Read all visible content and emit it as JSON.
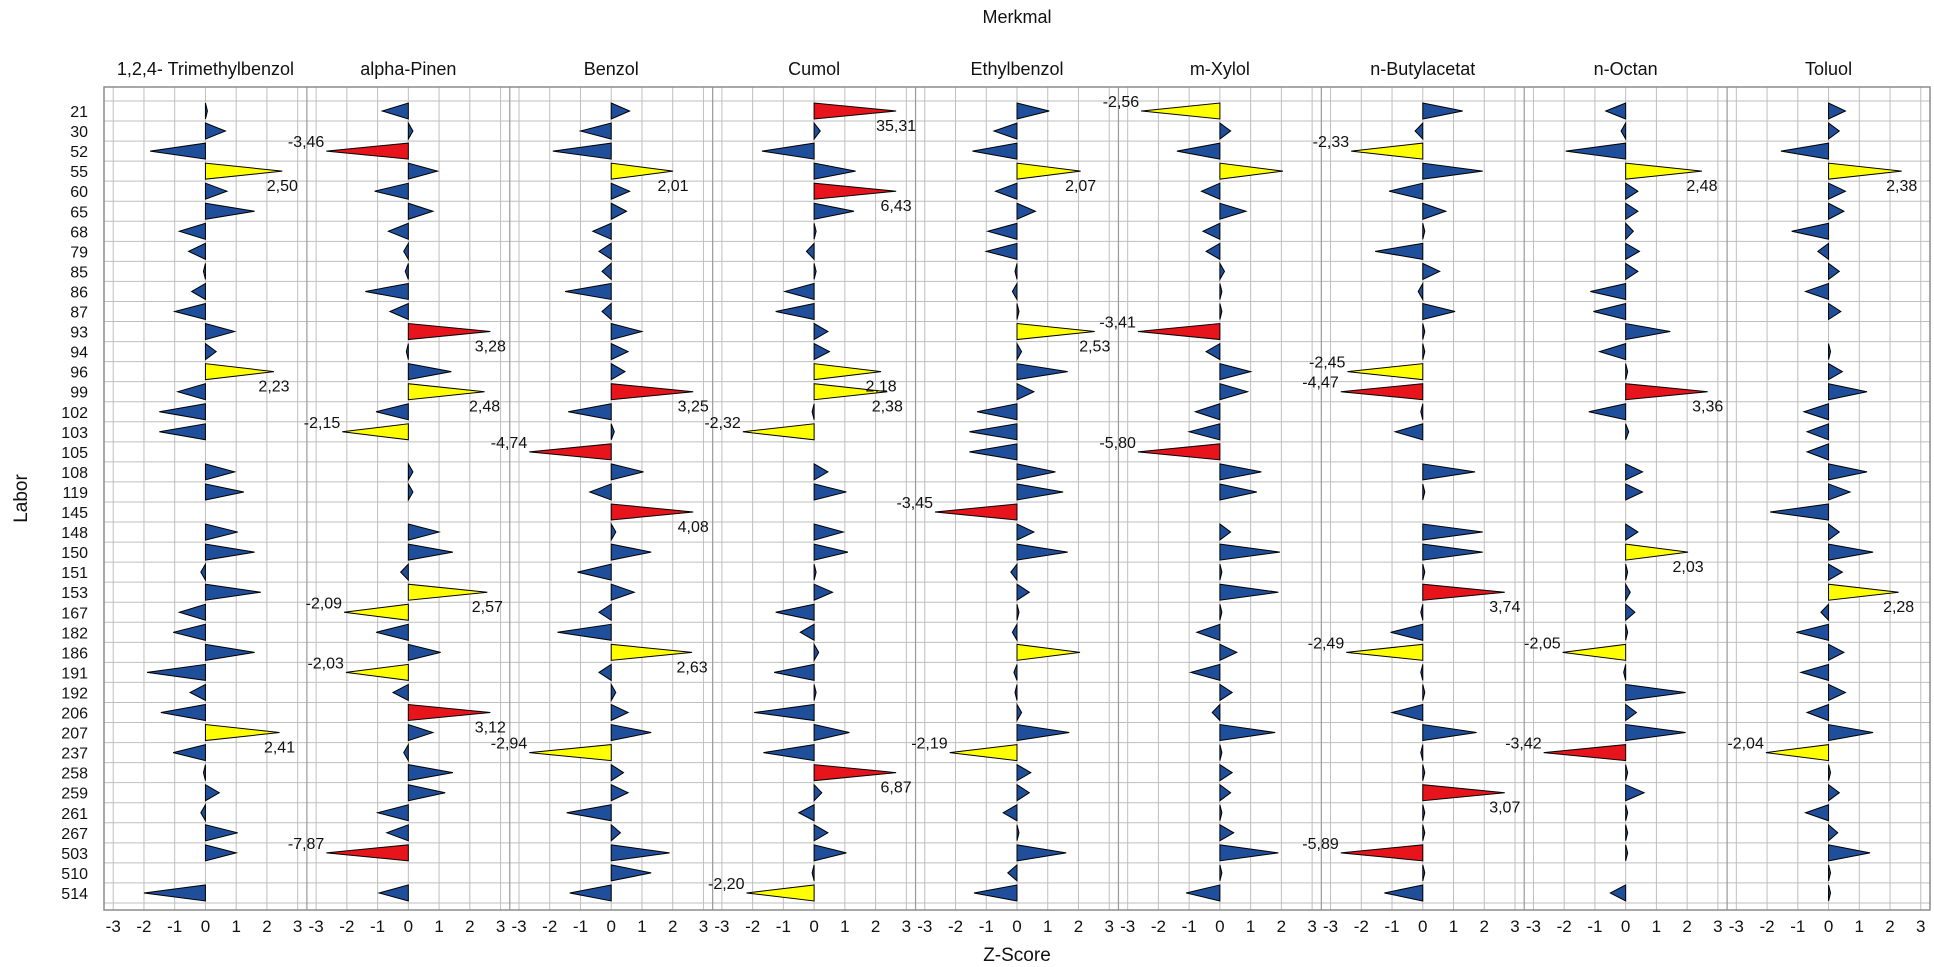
{
  "chart_data": {
    "type": "small-multiple-triangle-plot",
    "title": "Merkmal",
    "xlabel": "Z-Score",
    "ylabel": "Labor",
    "xlim": [
      -3.3,
      3.3
    ],
    "x_ticks": [
      "-3",
      "-2",
      "-1",
      "0",
      "1",
      "2",
      "3"
    ],
    "label_threshold": 2,
    "colors": {
      "normal": "#1F4E9B",
      "warning": "#FFFF00",
      "action": "#E8141B",
      "outline": "#000000",
      "grid": "#BFBFBF"
    },
    "labs": [
      "21",
      "30",
      "52",
      "55",
      "60",
      "65",
      "68",
      "79",
      "85",
      "86",
      "87",
      "93",
      "94",
      "96",
      "99",
      "102",
      "103",
      "105",
      "108",
      "119",
      "145",
      "148",
      "150",
      "151",
      "153",
      "167",
      "182",
      "186",
      "191",
      "192",
      "206",
      "207",
      "237",
      "258",
      "259",
      "261",
      "267",
      "503",
      "510",
      "514"
    ],
    "panels": [
      {
        "name": "1,2,4- Trimethylbenzol",
        "values": [
          0.05,
          0.65,
          -1.8,
          2.5,
          0.7,
          1.6,
          -0.85,
          -0.55,
          -0.05,
          -0.45,
          -1.0,
          0.95,
          0.35,
          2.23,
          -0.9,
          -1.5,
          -1.5,
          null,
          0.95,
          1.25,
          null,
          1.05,
          1.6,
          -0.15,
          1.8,
          -0.85,
          -1.05,
          1.6,
          -1.9,
          -0.5,
          -1.45,
          2.41,
          -1.05,
          -0.05,
          0.45,
          -0.15,
          1.05,
          1.0,
          null,
          -2.0
        ]
      },
      {
        "name": "alpha-Pinen",
        "values": [
          -0.85,
          0.15,
          -3.46,
          0.95,
          -1.1,
          0.8,
          -0.65,
          -0.15,
          -0.1,
          -1.4,
          -0.6,
          3.28,
          -0.05,
          1.4,
          2.48,
          -1.05,
          -2.15,
          null,
          0.15,
          0.15,
          null,
          1.0,
          1.45,
          -0.25,
          2.57,
          -2.09,
          -1.05,
          1.05,
          -2.03,
          -0.5,
          3.12,
          0.8,
          -0.15,
          1.45,
          1.2,
          -1.0,
          -0.7,
          -7.87,
          null,
          -0.95
        ]
      },
      {
        "name": "Benzol",
        "values": [
          0.6,
          -1.0,
          -1.9,
          2.01,
          0.6,
          0.5,
          -0.6,
          -0.4,
          -0.3,
          -1.5,
          -0.3,
          1.0,
          0.55,
          0.45,
          3.25,
          -1.4,
          0.1,
          -4.74,
          1.05,
          -0.7,
          4.08,
          0.15,
          1.3,
          -1.1,
          0.75,
          -0.4,
          -1.75,
          2.63,
          -0.4,
          0.15,
          0.55,
          1.3,
          -2.94,
          0.4,
          0.55,
          -1.45,
          0.3,
          1.9,
          1.3,
          -1.35
        ]
      },
      {
        "name": "Cumol",
        "values": [
          35.31,
          0.2,
          -1.7,
          1.35,
          6.43,
          1.3,
          0.05,
          -0.25,
          0.05,
          -0.95,
          -1.25,
          0.45,
          0.5,
          2.18,
          2.38,
          -0.05,
          -2.32,
          null,
          0.45,
          1.05,
          null,
          0.95,
          1.1,
          0.05,
          0.6,
          -1.25,
          -0.45,
          0.15,
          -1.3,
          0.05,
          -1.95,
          1.15,
          -1.65,
          6.87,
          0.25,
          -0.5,
          0.45,
          1.05,
          -0.05,
          -2.2
        ]
      },
      {
        "name": "Ethylbenzol",
        "values": [
          1.05,
          -0.75,
          -1.45,
          2.07,
          -0.7,
          0.6,
          -0.95,
          -1.0,
          -0.05,
          -0.15,
          0.05,
          2.53,
          0.15,
          1.65,
          0.55,
          -1.3,
          -1.55,
          -1.55,
          1.25,
          1.5,
          -3.45,
          0.55,
          1.65,
          -0.2,
          0.4,
          0.05,
          -0.15,
          2.05,
          -0.1,
          -0.05,
          0.15,
          1.7,
          -2.19,
          0.45,
          0.4,
          -0.45,
          0.05,
          1.6,
          -0.3,
          -1.4
        ]
      },
      {
        "name": "m-Xylol",
        "values": [
          -2.56,
          0.35,
          -1.4,
          2.05,
          -0.6,
          0.85,
          -0.55,
          -0.45,
          0.15,
          0.05,
          0.05,
          -3.41,
          -0.45,
          1.0,
          0.9,
          -0.8,
          -1.0,
          -5.8,
          1.35,
          1.2,
          null,
          0.35,
          1.95,
          0.05,
          1.9,
          0.05,
          -0.75,
          0.55,
          -0.95,
          0.4,
          -0.25,
          1.8,
          0.05,
          0.4,
          0.35,
          0.05,
          0.45,
          1.9,
          0.05,
          -1.1
        ]
      },
      {
        "name": "n-Butylacetat",
        "values": [
          1.3,
          -0.25,
          -2.33,
          1.95,
          -1.1,
          0.75,
          0.05,
          -1.55,
          0.55,
          -0.15,
          1.05,
          0.05,
          0.05,
          -2.45,
          -4.47,
          -0.05,
          -0.9,
          null,
          1.7,
          0.05,
          null,
          1.95,
          1.95,
          0.05,
          3.74,
          -0.05,
          -1.05,
          -2.49,
          -0.05,
          0.05,
          -1.0,
          1.75,
          -0.05,
          0.05,
          3.07,
          0.05,
          0.05,
          -5.89,
          0.05,
          -1.25
        ]
      },
      {
        "name": "n-Octan",
        "values": [
          -0.65,
          -0.15,
          -1.95,
          2.48,
          0.4,
          0.4,
          0.25,
          0.45,
          0.4,
          -1.15,
          -1.05,
          1.45,
          -0.85,
          0.05,
          3.36,
          -1.2,
          0.1,
          null,
          0.55,
          0.55,
          null,
          0.4,
          2.03,
          0.05,
          0.15,
          0.3,
          0.05,
          -2.05,
          -0.05,
          1.95,
          0.35,
          1.95,
          -3.42,
          0.05,
          0.6,
          0.05,
          0.05,
          0.05,
          null,
          -0.5
        ]
      },
      {
        "name": "Toluol",
        "values": [
          0.55,
          0.35,
          -1.55,
          2.38,
          0.55,
          0.5,
          -1.2,
          -0.35,
          0.35,
          -0.75,
          0.4,
          null,
          0.05,
          0.45,
          1.25,
          -0.8,
          -0.7,
          -0.7,
          1.25,
          0.7,
          -1.9,
          0.35,
          1.45,
          0.45,
          2.28,
          -0.25,
          -1.05,
          0.5,
          -0.9,
          0.55,
          -0.7,
          1.45,
          -2.04,
          0.05,
          0.35,
          -0.75,
          0.3,
          1.35,
          0.05,
          0.05
        ]
      }
    ],
    "labels": [
      {
        "panel": 0,
        "lab": "55",
        "text": "2,50"
      },
      {
        "panel": 0,
        "lab": "96",
        "text": "2,23"
      },
      {
        "panel": 0,
        "lab": "207",
        "text": "2,41"
      },
      {
        "panel": 1,
        "lab": "52",
        "text": "-3,46"
      },
      {
        "panel": 1,
        "lab": "93",
        "text": "3,28"
      },
      {
        "panel": 1,
        "lab": "99",
        "text": "2,48"
      },
      {
        "panel": 1,
        "lab": "103",
        "text": "-2,15"
      },
      {
        "panel": 1,
        "lab": "153",
        "text": "2,57"
      },
      {
        "panel": 1,
        "lab": "167",
        "text": "-2,09"
      },
      {
        "panel": 1,
        "lab": "191",
        "text": "-2,03"
      },
      {
        "panel": 1,
        "lab": "206",
        "text": "3,12"
      },
      {
        "panel": 1,
        "lab": "503",
        "text": "-7,87"
      },
      {
        "panel": 2,
        "lab": "55",
        "text": "2,01"
      },
      {
        "panel": 2,
        "lab": "99",
        "text": "3,25"
      },
      {
        "panel": 2,
        "lab": "105",
        "text": "-4,74"
      },
      {
        "panel": 2,
        "lab": "145",
        "text": "4,08"
      },
      {
        "panel": 2,
        "lab": "186",
        "text": "2,63"
      },
      {
        "panel": 2,
        "lab": "237",
        "text": "-2,94"
      },
      {
        "panel": 3,
        "lab": "21",
        "text": "35,31"
      },
      {
        "panel": 3,
        "lab": "60",
        "text": "6,43"
      },
      {
        "panel": 3,
        "lab": "96",
        "text": "2,18"
      },
      {
        "panel": 3,
        "lab": "99",
        "text": "2,38"
      },
      {
        "panel": 3,
        "lab": "103",
        "text": "-2,32"
      },
      {
        "panel": 3,
        "lab": "258",
        "text": "6,87"
      },
      {
        "panel": 3,
        "lab": "514",
        "text": "-2,20"
      },
      {
        "panel": 4,
        "lab": "55",
        "text": "2,07"
      },
      {
        "panel": 4,
        "lab": "93",
        "text": "2,53"
      },
      {
        "panel": 4,
        "lab": "145",
        "text": "-3,45"
      },
      {
        "panel": 4,
        "lab": "237",
        "text": "-2,19"
      },
      {
        "panel": 5,
        "lab": "21",
        "text": "-2,56"
      },
      {
        "panel": 5,
        "lab": "93",
        "text": "-3,41"
      },
      {
        "panel": 5,
        "lab": "105",
        "text": "-5,80"
      },
      {
        "panel": 6,
        "lab": "52",
        "text": "-2,33"
      },
      {
        "panel": 6,
        "lab": "96",
        "text": "-2,45"
      },
      {
        "panel": 6,
        "lab": "99",
        "text": "-4,47"
      },
      {
        "panel": 6,
        "lab": "153",
        "text": "3,74"
      },
      {
        "panel": 6,
        "lab": "186",
        "text": "-2,49"
      },
      {
        "panel": 6,
        "lab": "259",
        "text": "3,07"
      },
      {
        "panel": 6,
        "lab": "503",
        "text": "-5,89"
      },
      {
        "panel": 7,
        "lab": "55",
        "text": "2,48"
      },
      {
        "panel": 7,
        "lab": "99",
        "text": "3,36"
      },
      {
        "panel": 7,
        "lab": "150",
        "text": "2,03"
      },
      {
        "panel": 7,
        "lab": "186",
        "text": "-2,05"
      },
      {
        "panel": 7,
        "lab": "237",
        "text": "-3,42"
      },
      {
        "panel": 8,
        "lab": "55",
        "text": "2,38"
      },
      {
        "panel": 8,
        "lab": "153",
        "text": "2,28"
      },
      {
        "panel": 8,
        "lab": "237",
        "text": "-2,04"
      }
    ]
  }
}
